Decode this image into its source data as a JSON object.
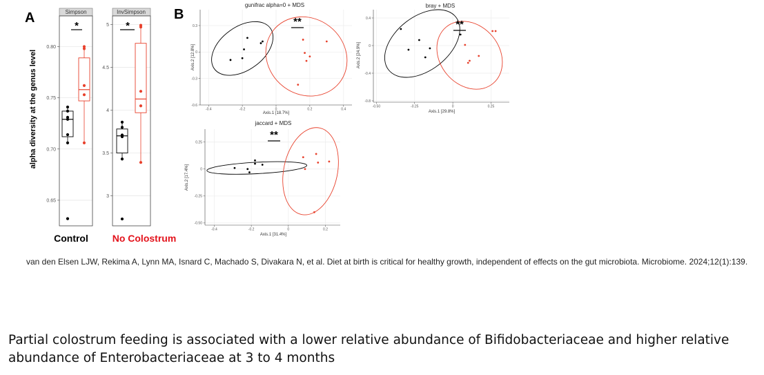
{
  "colors": {
    "control": "#000000",
    "no_colostrum": "#e8412c",
    "no_colostrum_label": "#e3121b"
  },
  "panel_a": {
    "letter": "A",
    "ylabel": "alpha diversity at the genus level",
    "groups": [
      "Control",
      "No Colostrum"
    ],
    "significance": [
      "*",
      "*"
    ]
  },
  "panel_b": {
    "letter": "B",
    "significance": [
      "**",
      "**",
      "**"
    ]
  },
  "chart_data": [
    {
      "type": "box",
      "facet": "Simpson",
      "ylim": [
        0.625,
        0.83
      ],
      "yticks": [
        0.65,
        0.7,
        0.75,
        0.8
      ],
      "ytick_labels": [
        "0.65",
        "0.70",
        "0.75",
        "0.80"
      ],
      "series": [
        {
          "name": "Control",
          "q1": 0.712,
          "median": 0.729,
          "q3": 0.737,
          "whisker_low": 0.706,
          "whisker_high": 0.741,
          "points": [
            0.741,
            0.737,
            0.731,
            0.729,
            0.714,
            0.706,
            0.632
          ]
        },
        {
          "name": "No Colostrum",
          "q1": 0.747,
          "median": 0.758,
          "q3": 0.789,
          "whisker_low": 0.706,
          "whisker_high": 0.8,
          "points": [
            0.8,
            0.798,
            0.762,
            0.753,
            0.706
          ]
        }
      ]
    },
    {
      "type": "box",
      "facet": "InvSimpson",
      "ylim": [
        2.65,
        5.1
      ],
      "yticks": [
        3.0,
        3.5,
        4.0,
        4.5,
        5.0
      ],
      "ytick_labels": [
        "3",
        "3.5",
        "4",
        "4.5",
        "5"
      ],
      "series": [
        {
          "name": "Control",
          "q1": 3.5,
          "median": 3.7,
          "q3": 3.78,
          "whisker_low": 3.43,
          "whisker_high": 3.86,
          "points": [
            3.86,
            3.8,
            3.71,
            3.69,
            3.43,
            2.73
          ]
        },
        {
          "name": "No Colostrum",
          "q1": 3.97,
          "median": 4.13,
          "q3": 4.78,
          "whisker_low": 3.39,
          "whisker_high": 4.99,
          "points": [
            4.99,
            4.97,
            4.22,
            4.05,
            3.39
          ]
        }
      ]
    },
    {
      "type": "scatter",
      "title": "gunifrac alpha=0 + MDS",
      "xlabel": "Axis.1 [18.7%]",
      "ylabel": "Axis.2 [12.8%]",
      "xlim": [
        -0.45,
        0.45
      ],
      "ylim": [
        -0.6,
        0.48
      ],
      "xticks": [
        -0.4,
        -0.2,
        0,
        0.2,
        0.4
      ],
      "xtick_labels": [
        "-0.4",
        "-0.2",
        "0",
        "0.2",
        "0.4"
      ],
      "yticks": [
        -0.6,
        -0.3,
        0,
        0.3
      ],
      "ytick_labels": [
        "-0.6",
        "-0.3",
        "0",
        "0.3"
      ],
      "series": [
        {
          "name": "Control",
          "points": [
            [
              -0.27,
              -0.09
            ],
            [
              -0.19,
              0.03
            ],
            [
              -0.2,
              -0.07
            ],
            [
              -0.17,
              0.16
            ],
            [
              -0.09,
              0.1
            ],
            [
              -0.08,
              0.12
            ]
          ],
          "ellipse": {
            "cx": -0.2,
            "cy": 0.04,
            "rx": 0.205,
            "ry": 0.245,
            "angle_deg": -36
          }
        },
        {
          "name": "No Colostrum",
          "points": [
            [
              0.16,
              0.14
            ],
            [
              0.17,
              -0.01
            ],
            [
              0.18,
              -0.1
            ],
            [
              0.2,
              -0.05
            ],
            [
              0.3,
              0.12
            ],
            [
              0.13,
              -0.37
            ]
          ],
          "ellipse": {
            "cx": 0.18,
            "cy": -0.05,
            "rx": 0.25,
            "ry": 0.43,
            "angle_deg": 38
          }
        }
      ]
    },
    {
      "type": "scatter",
      "title": "bray + MDS",
      "xlabel": "Axis.1 [29.8%]",
      "ylabel": "Axis.2 [24.9%]",
      "xlim": [
        -0.52,
        0.37
      ],
      "ylim": [
        -0.82,
        0.52
      ],
      "xticks": [
        -0.5,
        -0.25,
        0,
        0.25
      ],
      "xtick_labels": [
        "-0.50",
        "-0.25",
        "0",
        "0.25"
      ],
      "yticks": [
        -0.8,
        -0.4,
        0,
        0.4
      ],
      "ytick_labels": [
        "-0.8",
        "-0.4",
        "0",
        "0.4"
      ],
      "series": [
        {
          "name": "Control",
          "points": [
            [
              -0.34,
              0.24
            ],
            [
              -0.22,
              0.08
            ],
            [
              -0.29,
              -0.06
            ],
            [
              -0.15,
              -0.04
            ],
            [
              -0.18,
              -0.17
            ],
            [
              0.05,
              0.16
            ]
          ],
          "ellipse": {
            "cx": -0.2,
            "cy": 0.03,
            "rx": 0.28,
            "ry": 0.39,
            "angle_deg": -38
          }
        },
        {
          "name": "No Colostrum",
          "points": [
            [
              0.08,
              0.01
            ],
            [
              0.1,
              -0.25
            ],
            [
              0.11,
              -0.22
            ],
            [
              0.17,
              -0.15
            ],
            [
              0.26,
              0.21
            ],
            [
              0.28,
              0.21
            ]
          ],
          "ellipse": {
            "cx": 0.11,
            "cy": -0.14,
            "rx": 0.24,
            "ry": 0.43,
            "angle_deg": 50
          }
        }
      ]
    },
    {
      "type": "scatter",
      "title": "jaccard + MDS",
      "xlabel": "Axis.1 [31.4%]",
      "ylabel": "Axis.2 [17.4%]",
      "xlim": [
        -0.45,
        0.28
      ],
      "ylim": [
        -0.52,
        0.37
      ],
      "xticks": [
        -0.4,
        -0.2,
        0,
        0.2
      ],
      "xtick_labels": [
        "-0.4",
        "-0.2",
        "0",
        "0.2"
      ],
      "yticks": [
        -0.5,
        -0.25,
        0,
        0.25
      ],
      "ytick_labels": [
        "-0.50",
        "-0.25",
        "0",
        "0.25"
      ],
      "series": [
        {
          "name": "Control",
          "points": [
            [
              -0.29,
              0.01
            ],
            [
              -0.22,
              0.0
            ],
            [
              -0.21,
              -0.03
            ],
            [
              -0.18,
              0.08
            ],
            [
              -0.14,
              0.04
            ],
            [
              -0.18,
              0.05
            ]
          ],
          "ellipse": {
            "cx": -0.17,
            "cy": 0.01,
            "rx": 0.27,
            "ry": 0.053,
            "angle_deg": -3
          }
        },
        {
          "name": "No Colostrum",
          "points": [
            [
              0.08,
              0.11
            ],
            [
              0.09,
              0.0
            ],
            [
              0.15,
              0.14
            ],
            [
              0.16,
              0.06
            ],
            [
              0.22,
              0.07
            ],
            [
              0.14,
              -0.4
            ]
          ],
          "ellipse": {
            "cx": 0.12,
            "cy": -0.02,
            "rx": 0.145,
            "ry": 0.41,
            "angle_deg": 12
          }
        }
      ]
    }
  ],
  "citation": "van den Elsen LJW, Rekima A, Lynn MA, Isnard C, Machado S, Divakara N, et al. Diet at birth is critical for healthy growth, independent of effects on the gut microbiota. Microbiome. 2024;12(1):139.",
  "caption": "Partial colostrum feeding is associated with a lower relative abundance of Bifidobacteriaceae and higher relative abundance of Enterobacteriaceae at 3 to 4 months"
}
